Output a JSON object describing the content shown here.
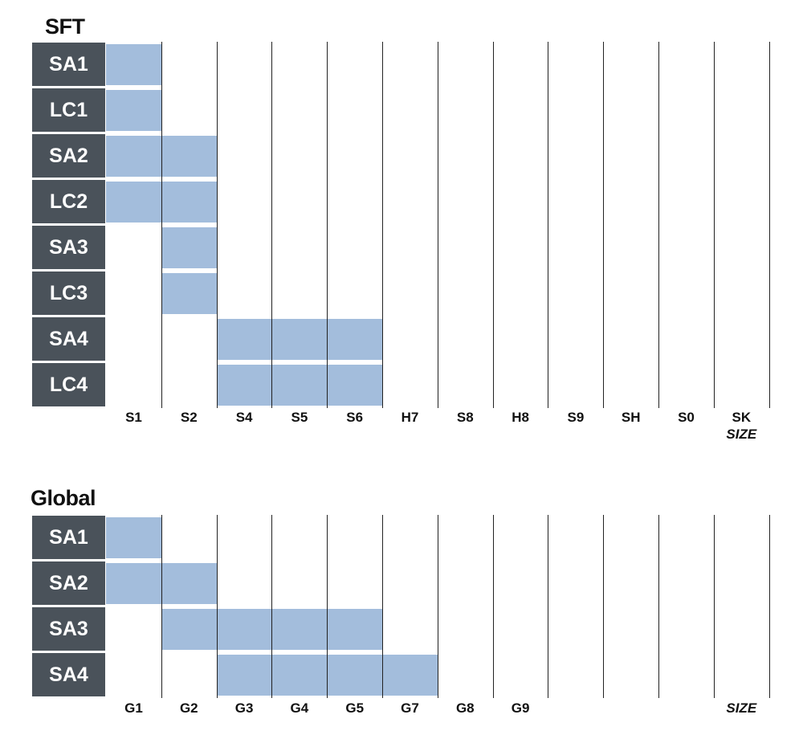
{
  "panels": [
    {
      "title": "SFT",
      "size_label": "SIZE",
      "rows": [
        "SA1",
        "LC1",
        "SA2",
        "LC2",
        "SA3",
        "LC3",
        "SA4",
        "LC4"
      ],
      "columns": [
        "S1",
        "S2",
        "S4",
        "S5",
        "S6",
        "H7",
        "S8",
        "H8",
        "S9",
        "SH",
        "S0",
        "SK"
      ],
      "coverage": [
        {
          "row": "SA1",
          "from": "S1",
          "to": "S1"
        },
        {
          "row": "LC1",
          "from": "S1",
          "to": "S1"
        },
        {
          "row": "SA2",
          "from": "S1",
          "to": "S2"
        },
        {
          "row": "LC2",
          "from": "S1",
          "to": "S2"
        },
        {
          "row": "SA3",
          "from": "S2",
          "to": "S2"
        },
        {
          "row": "LC3",
          "from": "S2",
          "to": "S2"
        },
        {
          "row": "SA4",
          "from": "S4",
          "to": "S6"
        },
        {
          "row": "LC4",
          "from": "S4",
          "to": "S6"
        }
      ]
    },
    {
      "title": "Global",
      "size_label": "SIZE",
      "rows": [
        "SA1",
        "SA2",
        "SA3",
        "SA4"
      ],
      "columns": [
        "G1",
        "G2",
        "G3",
        "G4",
        "G5",
        "G7",
        "G8",
        "G9",
        "",
        "",
        "",
        ""
      ],
      "coverage": [
        {
          "row": "SA1",
          "from": "G1",
          "to": "G1"
        },
        {
          "row": "SA2",
          "from": "G1",
          "to": "G2"
        },
        {
          "row": "SA3",
          "from": "G2",
          "to": "G5"
        },
        {
          "row": "SA4",
          "from": "G3",
          "to": "G7"
        }
      ]
    }
  ],
  "colors": {
    "bar": "#a3bddc",
    "row_label_bg": "#4a525a",
    "row_label_text": "#ffffff",
    "gridline": "#222222"
  }
}
